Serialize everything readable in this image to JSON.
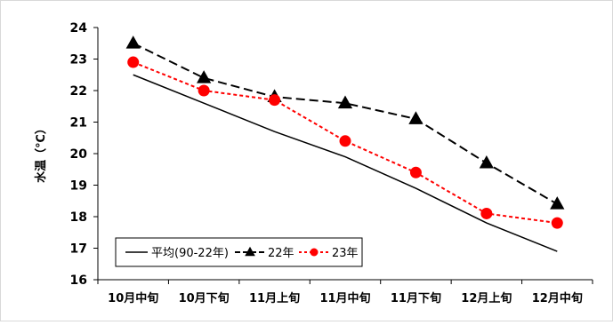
{
  "chart_data": {
    "type": "line",
    "title": "",
    "ylabel": "水温（℃）",
    "xlabel": "",
    "categories": [
      "10月中旬",
      "10月下旬",
      "11月上旬",
      "11月中旬",
      "11月下旬",
      "12月上旬",
      "12月中旬"
    ],
    "ylim": [
      16,
      24
    ],
    "yticks": [
      16,
      17,
      18,
      19,
      20,
      21,
      22,
      23,
      24
    ],
    "grid": false,
    "legend_position": "bottom-left",
    "series": [
      {
        "name": "平均(90-22年)",
        "values": [
          22.5,
          21.6,
          20.7,
          19.9,
          18.9,
          17.8,
          16.9
        ],
        "color": "#000000",
        "line_style": "solid",
        "marker": "none"
      },
      {
        "name": "22年",
        "values": [
          23.5,
          22.4,
          21.8,
          21.6,
          21.1,
          19.7,
          18.4
        ],
        "color": "#000000",
        "line_style": "dashed",
        "marker": "triangle"
      },
      {
        "name": "23年",
        "values": [
          22.9,
          22.0,
          21.7,
          20.4,
          19.4,
          18.1,
          17.8
        ],
        "color": "#ff0000",
        "line_style": "dotted",
        "marker": "circle"
      }
    ]
  }
}
